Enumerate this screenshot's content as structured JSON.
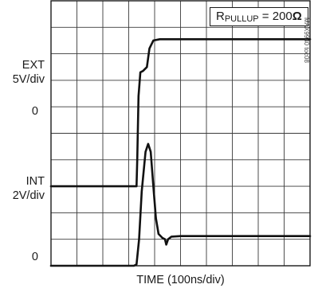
{
  "chart_data": {
    "type": "line",
    "title": "",
    "xlabel": "TIME (100ns/div)",
    "divisions": {
      "x": 10,
      "y": 10
    },
    "grid": true,
    "x_units": "div",
    "y_units": "div",
    "annotation": {
      "label_main": "R",
      "label_sub": "PULLUP",
      "label_tail": " = 200",
      "label_unit": "Ω",
      "placement": "top-right"
    },
    "figure_id": "MAX9940 toc08",
    "channels": [
      {
        "name": "EXT",
        "scale": "5V/div",
        "zero_label": "0",
        "zero_level_div": 3.0,
        "points": [
          [
            0.0,
            3.0
          ],
          [
            3.2,
            3.0
          ],
          [
            3.3,
            3.0
          ],
          [
            3.33,
            4.0
          ],
          [
            3.38,
            6.4
          ],
          [
            3.45,
            7.3
          ],
          [
            3.55,
            7.35
          ],
          [
            3.7,
            7.5
          ],
          [
            3.8,
            8.2
          ],
          [
            3.95,
            8.5
          ],
          [
            4.2,
            8.55
          ],
          [
            10.0,
            8.55
          ]
        ]
      },
      {
        "name": "INT",
        "scale": "2V/div",
        "zero_label": "0",
        "zero_level_div": 0.0,
        "points": [
          [
            0.0,
            0.0
          ],
          [
            3.2,
            0.0
          ],
          [
            3.3,
            0.05
          ],
          [
            3.4,
            1.0
          ],
          [
            3.5,
            2.8
          ],
          [
            3.65,
            4.3
          ],
          [
            3.75,
            4.6
          ],
          [
            3.85,
            4.3
          ],
          [
            3.95,
            3.0
          ],
          [
            4.05,
            1.8
          ],
          [
            4.15,
            1.2
          ],
          [
            4.3,
            1.05
          ],
          [
            4.4,
            1.0
          ],
          [
            4.45,
            0.8
          ],
          [
            4.52,
            1.0
          ],
          [
            4.65,
            1.1
          ],
          [
            5.0,
            1.12
          ],
          [
            10.0,
            1.12
          ]
        ]
      }
    ]
  }
}
